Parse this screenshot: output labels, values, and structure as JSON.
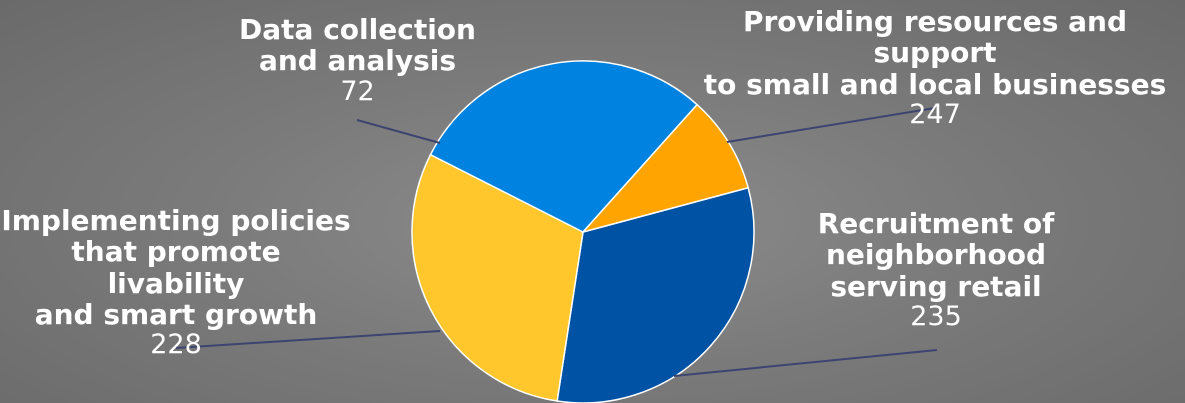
{
  "chart_data": {
    "type": "pie",
    "title": "",
    "slices": [
      {
        "label": "Providing resources and support\nto small and local businesses",
        "value": 247,
        "color": "#0052a5"
      },
      {
        "label": "Recruitment of\nneighborhood\nserving retail",
        "value": 235,
        "color": "#ffc72c"
      },
      {
        "label": "Implementing policies\nthat promote livability\nand smart growth",
        "value": 228,
        "color": "#0082e0"
      },
      {
        "label": "Data collection\nand analysis",
        "value": 72,
        "color": "#ffa400"
      }
    ],
    "start_angle_deg": -15,
    "direction": "clockwise",
    "leader_line_color": "#3d4470",
    "label_text_color": "#ffffff"
  }
}
